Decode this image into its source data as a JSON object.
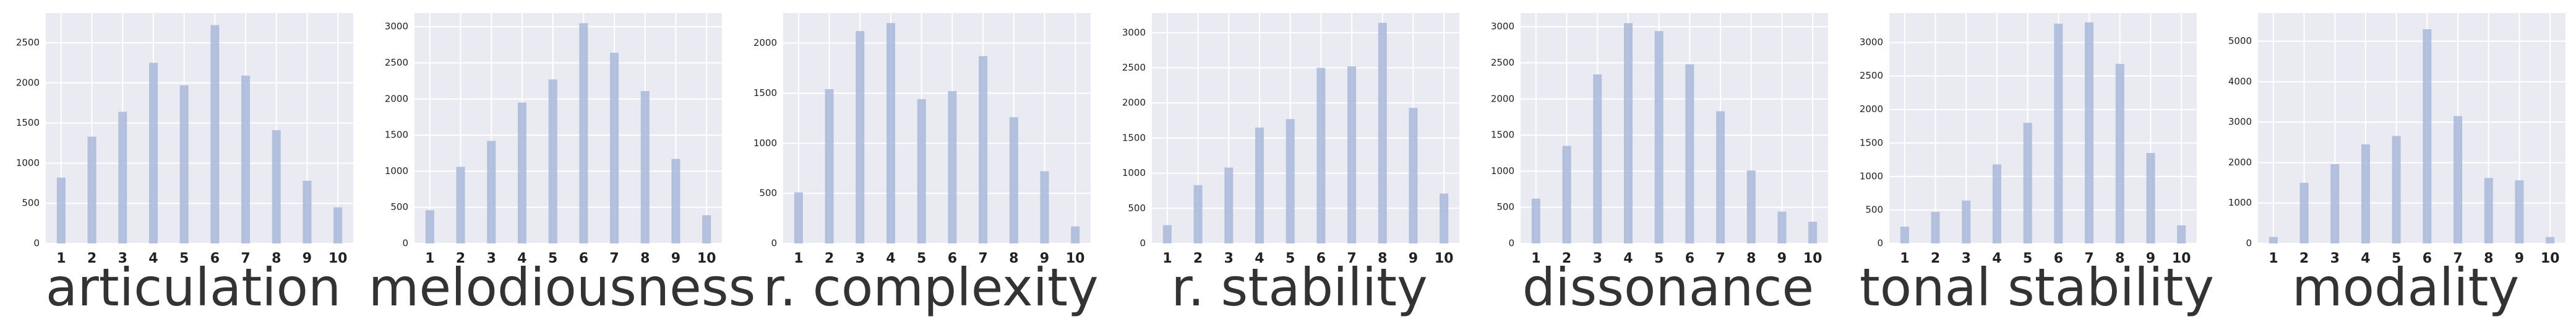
{
  "chart_data": [
    {
      "type": "bar",
      "x_label": "articulation",
      "categories": [
        "1",
        "2",
        "3",
        "4",
        "5",
        "6",
        "7",
        "8",
        "9",
        "10"
      ],
      "values": [
        820,
        1330,
        1640,
        2250,
        1970,
        2720,
        2090,
        1410,
        780,
        450
      ],
      "color": "#a8b8d9",
      "ylim": [
        0,
        2870
      ],
      "yticks": [
        0,
        500,
        1000,
        1500,
        2000,
        2500
      ],
      "grid": true
    },
    {
      "type": "bar",
      "x_label": "melodiousness",
      "categories": [
        "1",
        "2",
        "3",
        "4",
        "5",
        "6",
        "7",
        "8",
        "9",
        "10"
      ],
      "values": [
        460,
        1060,
        1420,
        1950,
        2270,
        3050,
        2640,
        2110,
        1170,
        390
      ],
      "color": "#a8b8d9",
      "ylim": [
        0,
        3190
      ],
      "yticks": [
        0,
        500,
        1000,
        1500,
        2000,
        2500,
        3000
      ],
      "grid": true
    },
    {
      "type": "bar",
      "x_label": "r. complexity",
      "categories": [
        "1",
        "2",
        "3",
        "4",
        "5",
        "6",
        "7",
        "8",
        "9",
        "10"
      ],
      "values": [
        510,
        1540,
        2120,
        2200,
        1440,
        1520,
        1870,
        1260,
        720,
        170
      ],
      "color": "#a8b8d9",
      "ylim": [
        0,
        2300
      ],
      "yticks": [
        0,
        500,
        1000,
        1500,
        2000
      ],
      "grid": true
    },
    {
      "type": "bar",
      "x_label": "r. stability",
      "categories": [
        "1",
        "2",
        "3",
        "4",
        "5",
        "6",
        "7",
        "8",
        "9",
        "10"
      ],
      "values": [
        260,
        830,
        1080,
        1650,
        1770,
        2500,
        2520,
        3140,
        1930,
        710
      ],
      "color": "#a8b8d9",
      "ylim": [
        0,
        3280
      ],
      "yticks": [
        0,
        500,
        1000,
        1500,
        2000,
        2500,
        3000
      ],
      "grid": true
    },
    {
      "type": "bar",
      "x_label": "dissonance",
      "categories": [
        "1",
        "2",
        "3",
        "4",
        "5",
        "6",
        "7",
        "8",
        "9",
        "10"
      ],
      "values": [
        620,
        1350,
        2340,
        3050,
        2940,
        2480,
        1830,
        1010,
        440,
        300
      ],
      "color": "#a8b8d9",
      "ylim": [
        0,
        3190
      ],
      "yticks": [
        0,
        500,
        1000,
        1500,
        2000,
        2500,
        3000
      ],
      "grid": true
    },
    {
      "type": "bar",
      "x_label": "tonal stability",
      "categories": [
        "1",
        "2",
        "3",
        "4",
        "5",
        "6",
        "7",
        "8",
        "9",
        "10"
      ],
      "values": [
        250,
        470,
        640,
        1180,
        1800,
        3280,
        3300,
        2680,
        1350,
        270
      ],
      "color": "#a8b8d9",
      "ylim": [
        0,
        3440
      ],
      "yticks": [
        0,
        500,
        1000,
        1500,
        2000,
        2500,
        3000
      ],
      "grid": true
    },
    {
      "type": "bar",
      "x_label": "modality",
      "categories": [
        "1",
        "2",
        "3",
        "4",
        "5",
        "6",
        "7",
        "8",
        "9",
        "10"
      ],
      "values": [
        160,
        1500,
        1960,
        2450,
        2660,
        5300,
        3150,
        1620,
        1560,
        160
      ],
      "color": "#a8b8d9",
      "ylim": [
        0,
        5700
      ],
      "yticks": [
        0,
        1000,
        2000,
        3000,
        4000,
        5000
      ],
      "grid": true
    }
  ]
}
